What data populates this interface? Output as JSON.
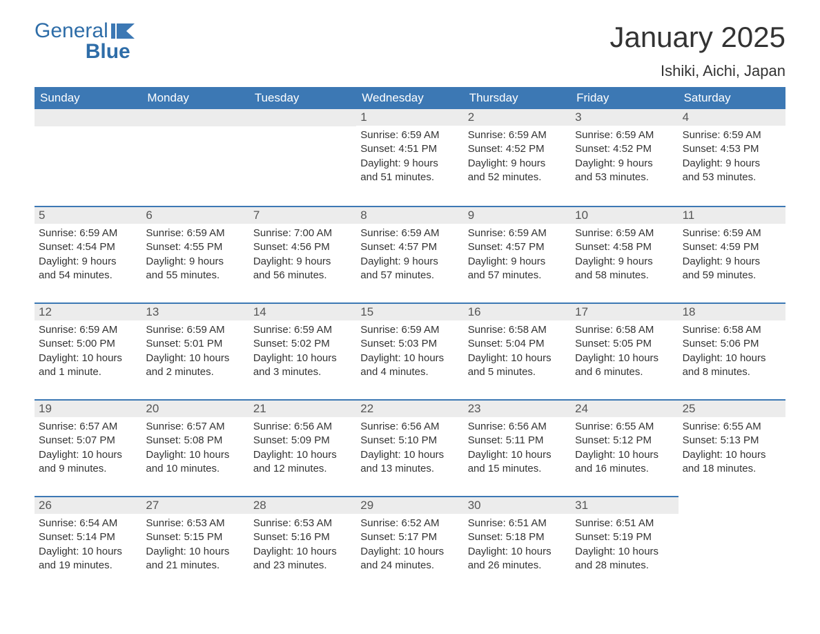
{
  "logo": {
    "word1": "General",
    "word2": "Blue",
    "text_color": "#2e6da8",
    "flag_color": "#3c78b4"
  },
  "header": {
    "title": "January 2025",
    "location": "Ishiki, Aichi, Japan",
    "title_fontsize": 42,
    "subtitle_fontsize": 22
  },
  "colors": {
    "header_bg": "#3c78b4",
    "header_text": "#ffffff",
    "number_bar_bg": "#ececec",
    "number_bar_text": "#555555",
    "body_text": "#333333",
    "cell_border": "#3c78b4",
    "page_bg": "#ffffff"
  },
  "layout": {
    "columns": 7,
    "rows": 5,
    "label_fontsize": 17,
    "cell_fontsize": 15
  },
  "day_labels": [
    "Sunday",
    "Monday",
    "Tuesday",
    "Wednesday",
    "Thursday",
    "Friday",
    "Saturday"
  ],
  "weeks": [
    [
      {
        "empty": true
      },
      {
        "empty": true
      },
      {
        "empty": true
      },
      {
        "day": "1",
        "sunrise": "Sunrise: 6:59 AM",
        "sunset": "Sunset: 4:51 PM",
        "daylight1": "Daylight: 9 hours",
        "daylight2": "and 51 minutes."
      },
      {
        "day": "2",
        "sunrise": "Sunrise: 6:59 AM",
        "sunset": "Sunset: 4:52 PM",
        "daylight1": "Daylight: 9 hours",
        "daylight2": "and 52 minutes."
      },
      {
        "day": "3",
        "sunrise": "Sunrise: 6:59 AM",
        "sunset": "Sunset: 4:52 PM",
        "daylight1": "Daylight: 9 hours",
        "daylight2": "and 53 minutes."
      },
      {
        "day": "4",
        "sunrise": "Sunrise: 6:59 AM",
        "sunset": "Sunset: 4:53 PM",
        "daylight1": "Daylight: 9 hours",
        "daylight2": "and 53 minutes."
      }
    ],
    [
      {
        "day": "5",
        "sunrise": "Sunrise: 6:59 AM",
        "sunset": "Sunset: 4:54 PM",
        "daylight1": "Daylight: 9 hours",
        "daylight2": "and 54 minutes."
      },
      {
        "day": "6",
        "sunrise": "Sunrise: 6:59 AM",
        "sunset": "Sunset: 4:55 PM",
        "daylight1": "Daylight: 9 hours",
        "daylight2": "and 55 minutes."
      },
      {
        "day": "7",
        "sunrise": "Sunrise: 7:00 AM",
        "sunset": "Sunset: 4:56 PM",
        "daylight1": "Daylight: 9 hours",
        "daylight2": "and 56 minutes."
      },
      {
        "day": "8",
        "sunrise": "Sunrise: 6:59 AM",
        "sunset": "Sunset: 4:57 PM",
        "daylight1": "Daylight: 9 hours",
        "daylight2": "and 57 minutes."
      },
      {
        "day": "9",
        "sunrise": "Sunrise: 6:59 AM",
        "sunset": "Sunset: 4:57 PM",
        "daylight1": "Daylight: 9 hours",
        "daylight2": "and 57 minutes."
      },
      {
        "day": "10",
        "sunrise": "Sunrise: 6:59 AM",
        "sunset": "Sunset: 4:58 PM",
        "daylight1": "Daylight: 9 hours",
        "daylight2": "and 58 minutes."
      },
      {
        "day": "11",
        "sunrise": "Sunrise: 6:59 AM",
        "sunset": "Sunset: 4:59 PM",
        "daylight1": "Daylight: 9 hours",
        "daylight2": "and 59 minutes."
      }
    ],
    [
      {
        "day": "12",
        "sunrise": "Sunrise: 6:59 AM",
        "sunset": "Sunset: 5:00 PM",
        "daylight1": "Daylight: 10 hours",
        "daylight2": "and 1 minute."
      },
      {
        "day": "13",
        "sunrise": "Sunrise: 6:59 AM",
        "sunset": "Sunset: 5:01 PM",
        "daylight1": "Daylight: 10 hours",
        "daylight2": "and 2 minutes."
      },
      {
        "day": "14",
        "sunrise": "Sunrise: 6:59 AM",
        "sunset": "Sunset: 5:02 PM",
        "daylight1": "Daylight: 10 hours",
        "daylight2": "and 3 minutes."
      },
      {
        "day": "15",
        "sunrise": "Sunrise: 6:59 AM",
        "sunset": "Sunset: 5:03 PM",
        "daylight1": "Daylight: 10 hours",
        "daylight2": "and 4 minutes."
      },
      {
        "day": "16",
        "sunrise": "Sunrise: 6:58 AM",
        "sunset": "Sunset: 5:04 PM",
        "daylight1": "Daylight: 10 hours",
        "daylight2": "and 5 minutes."
      },
      {
        "day": "17",
        "sunrise": "Sunrise: 6:58 AM",
        "sunset": "Sunset: 5:05 PM",
        "daylight1": "Daylight: 10 hours",
        "daylight2": "and 6 minutes."
      },
      {
        "day": "18",
        "sunrise": "Sunrise: 6:58 AM",
        "sunset": "Sunset: 5:06 PM",
        "daylight1": "Daylight: 10 hours",
        "daylight2": "and 8 minutes."
      }
    ],
    [
      {
        "day": "19",
        "sunrise": "Sunrise: 6:57 AM",
        "sunset": "Sunset: 5:07 PM",
        "daylight1": "Daylight: 10 hours",
        "daylight2": "and 9 minutes."
      },
      {
        "day": "20",
        "sunrise": "Sunrise: 6:57 AM",
        "sunset": "Sunset: 5:08 PM",
        "daylight1": "Daylight: 10 hours",
        "daylight2": "and 10 minutes."
      },
      {
        "day": "21",
        "sunrise": "Sunrise: 6:56 AM",
        "sunset": "Sunset: 5:09 PM",
        "daylight1": "Daylight: 10 hours",
        "daylight2": "and 12 minutes."
      },
      {
        "day": "22",
        "sunrise": "Sunrise: 6:56 AM",
        "sunset": "Sunset: 5:10 PM",
        "daylight1": "Daylight: 10 hours",
        "daylight2": "and 13 minutes."
      },
      {
        "day": "23",
        "sunrise": "Sunrise: 6:56 AM",
        "sunset": "Sunset: 5:11 PM",
        "daylight1": "Daylight: 10 hours",
        "daylight2": "and 15 minutes."
      },
      {
        "day": "24",
        "sunrise": "Sunrise: 6:55 AM",
        "sunset": "Sunset: 5:12 PM",
        "daylight1": "Daylight: 10 hours",
        "daylight2": "and 16 minutes."
      },
      {
        "day": "25",
        "sunrise": "Sunrise: 6:55 AM",
        "sunset": "Sunset: 5:13 PM",
        "daylight1": "Daylight: 10 hours",
        "daylight2": "and 18 minutes."
      }
    ],
    [
      {
        "day": "26",
        "sunrise": "Sunrise: 6:54 AM",
        "sunset": "Sunset: 5:14 PM",
        "daylight1": "Daylight: 10 hours",
        "daylight2": "and 19 minutes."
      },
      {
        "day": "27",
        "sunrise": "Sunrise: 6:53 AM",
        "sunset": "Sunset: 5:15 PM",
        "daylight1": "Daylight: 10 hours",
        "daylight2": "and 21 minutes."
      },
      {
        "day": "28",
        "sunrise": "Sunrise: 6:53 AM",
        "sunset": "Sunset: 5:16 PM",
        "daylight1": "Daylight: 10 hours",
        "daylight2": "and 23 minutes."
      },
      {
        "day": "29",
        "sunrise": "Sunrise: 6:52 AM",
        "sunset": "Sunset: 5:17 PM",
        "daylight1": "Daylight: 10 hours",
        "daylight2": "and 24 minutes."
      },
      {
        "day": "30",
        "sunrise": "Sunrise: 6:51 AM",
        "sunset": "Sunset: 5:18 PM",
        "daylight1": "Daylight: 10 hours",
        "daylight2": "and 26 minutes."
      },
      {
        "day": "31",
        "sunrise": "Sunrise: 6:51 AM",
        "sunset": "Sunset: 5:19 PM",
        "daylight1": "Daylight: 10 hours",
        "daylight2": "and 28 minutes."
      },
      {
        "empty": true,
        "noBorder": true
      }
    ]
  ]
}
